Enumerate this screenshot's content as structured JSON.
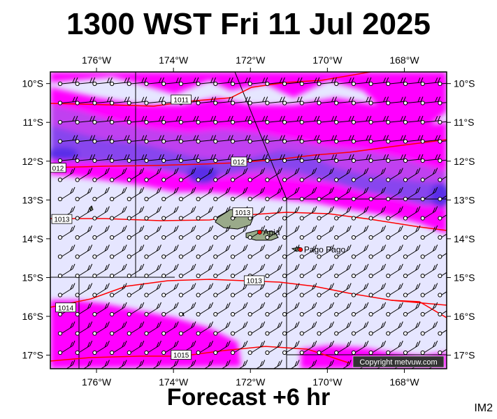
{
  "header": {
    "title": "1300 WST Fri 11 Jul 2025"
  },
  "footer": {
    "subtitle": "Forecast +6 hr",
    "product_code": "IM2"
  },
  "map": {
    "lon_range": [
      -177.2,
      -166.9
    ],
    "lat_range": [
      -17.35,
      -9.7
    ],
    "lon_ticks": [
      {
        "value": -176,
        "label": "176°W"
      },
      {
        "value": -174,
        "label": "174°W"
      },
      {
        "value": -172,
        "label": "172°W"
      },
      {
        "value": -170,
        "label": "170°W"
      },
      {
        "value": -168,
        "label": "168°W"
      }
    ],
    "lat_ticks": [
      {
        "value": -10,
        "label": "10°S"
      },
      {
        "value": -11,
        "label": "11°S"
      },
      {
        "value": -12,
        "label": "12°S"
      },
      {
        "value": -13,
        "label": "13°S"
      },
      {
        "value": -14,
        "label": "14°S"
      },
      {
        "value": -15,
        "label": "15°S"
      },
      {
        "value": -16,
        "label": "16°S"
      },
      {
        "value": -17,
        "label": "17°S"
      }
    ],
    "isobar_labels": [
      {
        "text": "1011",
        "lon": -173.8,
        "lat": -10.42
      },
      {
        "text": "012",
        "lon": -177.0,
        "lat": -12.18
      },
      {
        "text": "012",
        "lon": -172.3,
        "lat": -12.02
      },
      {
        "text": "1013",
        "lon": -172.2,
        "lat": -13.33
      },
      {
        "text": "1013",
        "lon": -176.9,
        "lat": -13.5
      },
      {
        "text": "1014",
        "lon": -176.8,
        "lat": -15.78
      },
      {
        "text": "1013",
        "lon": -171.9,
        "lat": -15.08
      },
      {
        "text": "1015",
        "lon": -173.8,
        "lat": -17.0
      }
    ],
    "places": [
      {
        "name": "Apia",
        "lon": -171.76,
        "lat": -13.83
      },
      {
        "name": "Pago Pago",
        "lon": -170.7,
        "lat": -14.28
      }
    ],
    "copyright": "Copyright metvuw.com",
    "colors": {
      "ocean_light": "#e6e6ff",
      "magenta": "#ff00ff",
      "purple": "#c040f0",
      "violet": "#8844ee",
      "blue": "#5a2ee8",
      "isobar": "#ff0000",
      "land": "#9aaa8a",
      "place_marker": "#ff0000"
    }
  }
}
